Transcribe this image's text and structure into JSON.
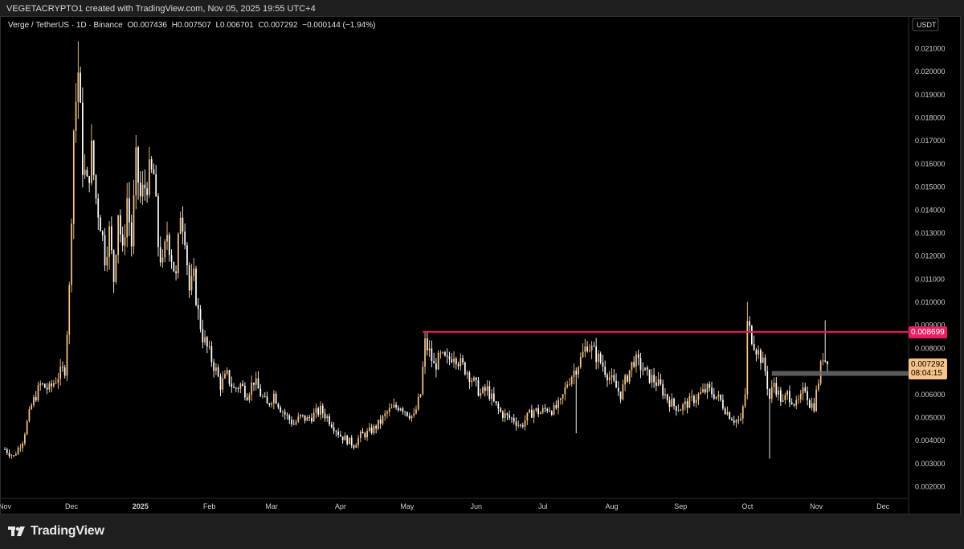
{
  "credit": "VEGETACRYPTO1 created with TradingView.com, Nov 05, 2025 19:55 UTC+4",
  "legend": {
    "symbol": "Verge / TetherUS · 1D · Binance",
    "open": "O0.007436",
    "high": "H0.007507",
    "low": "L0.006701",
    "close": "C0.007292",
    "change": "−0.000144 (−1.94%)"
  },
  "footer": {
    "brand": "TradingView",
    "logo_icon": "tradingview-logo-icon"
  },
  "colors": {
    "up": "#f7c58a",
    "down": "#ffffff",
    "resistance": "#e91e63",
    "current_price_bg": "#f7c58a",
    "support_zone": "#6b6b6b"
  },
  "chart_data": {
    "type": "candlestick",
    "quote_currency": "USDT",
    "y_ticks": [
      "0.021000",
      "0.020000",
      "0.019000",
      "0.018000",
      "0.017000",
      "0.016000",
      "0.015000",
      "0.014000",
      "0.013000",
      "0.012000",
      "0.011000",
      "0.010000",
      "0.009000",
      "0.008000",
      "0.007000",
      "0.006000",
      "0.005000",
      "0.004000",
      "0.003000",
      "0.002000"
    ],
    "ylim": [
      0.0015,
      0.0218
    ],
    "x_labels": [
      {
        "label": "Nov",
        "t": 0
      },
      {
        "label": "Dec",
        "t": 30
      },
      {
        "label": "2025",
        "t": 61,
        "bold": true
      },
      {
        "label": "Feb",
        "t": 92
      },
      {
        "label": "Mar",
        "t": 120
      },
      {
        "label": "Apr",
        "t": 151
      },
      {
        "label": "May",
        "t": 181
      },
      {
        "label": "Jun",
        "t": 212
      },
      {
        "label": "Jul",
        "t": 242
      },
      {
        "label": "Aug",
        "t": 273
      },
      {
        "label": "Sep",
        "t": 304
      },
      {
        "label": "Oct",
        "t": 334
      },
      {
        "label": "Nov",
        "t": 365
      },
      {
        "label": "Dec",
        "t": 395
      }
    ],
    "xlim": [
      0,
      430
    ],
    "price_path": [
      [
        0,
        0.0036
      ],
      [
        4,
        0.0033
      ],
      [
        8,
        0.004
      ],
      [
        12,
        0.0055
      ],
      [
        16,
        0.0064
      ],
      [
        20,
        0.0062
      ],
      [
        24,
        0.0068
      ],
      [
        27,
        0.0071
      ],
      [
        29,
        0.0105
      ],
      [
        31,
        0.0175
      ],
      [
        33,
        0.02
      ],
      [
        35,
        0.016
      ],
      [
        37,
        0.015
      ],
      [
        39,
        0.0165
      ],
      [
        41,
        0.0145
      ],
      [
        43,
        0.0135
      ],
      [
        45,
        0.012
      ],
      [
        47,
        0.013
      ],
      [
        49,
        0.011
      ],
      [
        51,
        0.014
      ],
      [
        53,
        0.012
      ],
      [
        55,
        0.0145
      ],
      [
        57,
        0.0125
      ],
      [
        59,
        0.016
      ],
      [
        61,
        0.0145
      ],
      [
        63,
        0.015
      ],
      [
        65,
        0.0155
      ],
      [
        67,
        0.0155
      ],
      [
        69,
        0.0125
      ],
      [
        71,
        0.0115
      ],
      [
        73,
        0.013
      ],
      [
        75,
        0.012
      ],
      [
        77,
        0.011
      ],
      [
        79,
        0.014
      ],
      [
        81,
        0.013
      ],
      [
        83,
        0.0105
      ],
      [
        85,
        0.011
      ],
      [
        87,
        0.0095
      ],
      [
        89,
        0.0085
      ],
      [
        91,
        0.008
      ],
      [
        93,
        0.0075
      ],
      [
        95,
        0.007
      ],
      [
        97,
        0.0064
      ],
      [
        100,
        0.0068
      ],
      [
        103,
        0.0062
      ],
      [
        106,
        0.0064
      ],
      [
        109,
        0.006
      ],
      [
        112,
        0.0066
      ],
      [
        115,
        0.006
      ],
      [
        118,
        0.0055
      ],
      [
        121,
        0.006
      ],
      [
        124,
        0.0054
      ],
      [
        127,
        0.005
      ],
      [
        130,
        0.0047
      ],
      [
        133,
        0.005
      ],
      [
        136,
        0.0049
      ],
      [
        139,
        0.0051
      ],
      [
        142,
        0.0053
      ],
      [
        145,
        0.005
      ],
      [
        148,
        0.0046
      ],
      [
        151,
        0.0042
      ],
      [
        154,
        0.004
      ],
      [
        157,
        0.0038
      ],
      [
        160,
        0.0042
      ],
      [
        163,
        0.0043
      ],
      [
        166,
        0.0045
      ],
      [
        169,
        0.0048
      ],
      [
        172,
        0.0052
      ],
      [
        175,
        0.0054
      ],
      [
        178,
        0.0055
      ],
      [
        181,
        0.0052
      ],
      [
        184,
        0.005
      ],
      [
        187,
        0.006
      ],
      [
        189,
        0.0082
      ],
      [
        191,
        0.0078
      ],
      [
        193,
        0.0072
      ],
      [
        196,
        0.0076
      ],
      [
        199,
        0.0074
      ],
      [
        202,
        0.0078
      ],
      [
        205,
        0.0073
      ],
      [
        208,
        0.007
      ],
      [
        211,
        0.0065
      ],
      [
        214,
        0.006
      ],
      [
        217,
        0.0062
      ],
      [
        220,
        0.0056
      ],
      [
        223,
        0.0052
      ],
      [
        226,
        0.005
      ],
      [
        229,
        0.0049
      ],
      [
        232,
        0.0046
      ],
      [
        235,
        0.005
      ],
      [
        238,
        0.0053
      ],
      [
        241,
        0.0052
      ],
      [
        244,
        0.0054
      ],
      [
        247,
        0.0053
      ],
      [
        250,
        0.0056
      ],
      [
        253,
        0.0065
      ],
      [
        256,
        0.007
      ],
      [
        259,
        0.0075
      ],
      [
        262,
        0.0082
      ],
      [
        265,
        0.0078
      ],
      [
        268,
        0.0074
      ],
      [
        271,
        0.0069
      ],
      [
        274,
        0.0064
      ],
      [
        277,
        0.006
      ],
      [
        280,
        0.0068
      ],
      [
        283,
        0.0075
      ],
      [
        286,
        0.0072
      ],
      [
        289,
        0.0068
      ],
      [
        292,
        0.0066
      ],
      [
        295,
        0.0063
      ],
      [
        298,
        0.0058
      ],
      [
        301,
        0.0055
      ],
      [
        304,
        0.0054
      ],
      [
        307,
        0.0056
      ],
      [
        310,
        0.0058
      ],
      [
        313,
        0.006
      ],
      [
        316,
        0.0062
      ],
      [
        319,
        0.006
      ],
      [
        322,
        0.0057
      ],
      [
        325,
        0.0052
      ],
      [
        328,
        0.0049
      ],
      [
        331,
        0.0048
      ],
      [
        333,
        0.006
      ],
      [
        334,
        0.009
      ],
      [
        336,
        0.0085
      ],
      [
        338,
        0.008
      ],
      [
        340,
        0.0076
      ],
      [
        342,
        0.007
      ],
      [
        344,
        0.0058
      ],
      [
        346,
        0.0065
      ],
      [
        348,
        0.006
      ],
      [
        350,
        0.0056
      ],
      [
        352,
        0.006
      ],
      [
        354,
        0.0058
      ],
      [
        356,
        0.0055
      ],
      [
        358,
        0.0058
      ],
      [
        360,
        0.0063
      ],
      [
        362,
        0.0056
      ],
      [
        364,
        0.0055
      ],
      [
        366,
        0.0066
      ],
      [
        368,
        0.0077
      ],
      [
        370,
        0.0073
      ]
    ],
    "resistance": {
      "price": 0.008699,
      "t_start": 188,
      "label": "0.008699"
    },
    "support_zone": {
      "price_low": 0.0068,
      "price_high": 0.007,
      "t_start": 345
    },
    "current_price": {
      "price": 0.007292,
      "label": "0.007292",
      "countdown": "08:04:15"
    }
  }
}
